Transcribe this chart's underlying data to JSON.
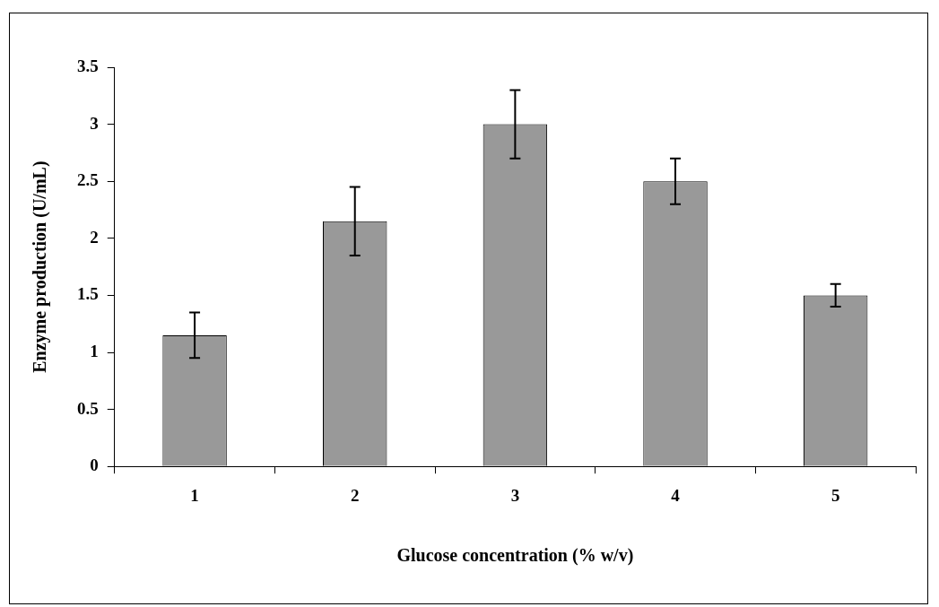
{
  "chart_data": {
    "type": "bar",
    "xlabel": "Glucose concentration (% w/v)",
    "ylabel": "Enzyme production (U/mL)",
    "categories": [
      "1",
      "2",
      "3",
      "4",
      "5"
    ],
    "values": [
      1.15,
      2.15,
      3.0,
      2.5,
      1.5
    ],
    "errors": [
      0.2,
      0.3,
      0.3,
      0.2,
      0.1
    ],
    "color": "#999999",
    "ylim": [
      0,
      3.5
    ],
    "yticks": [
      0,
      0.5,
      1,
      1.5,
      2,
      2.5,
      3,
      3.5
    ],
    "legend": false
  }
}
